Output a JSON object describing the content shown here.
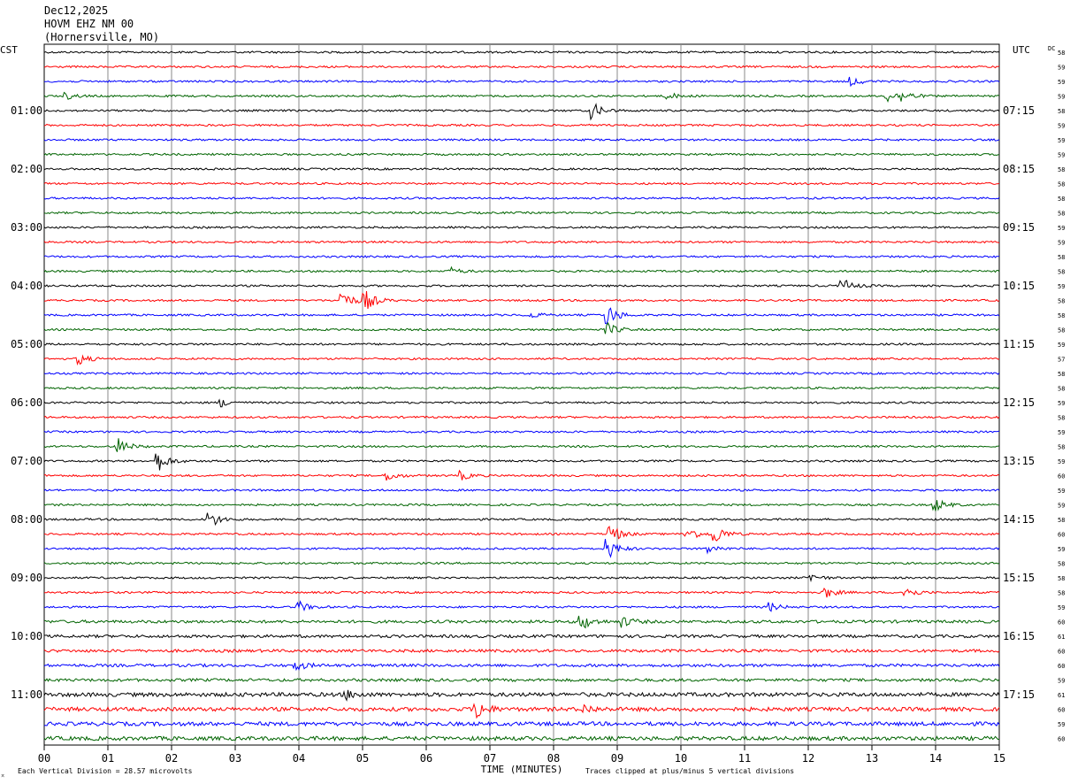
{
  "header": {
    "date": "Dec12,2025",
    "station": "HOVM EHZ NM 00",
    "location": "(Hornersville, MO)"
  },
  "left_axis_label": "CST",
  "right_axis_label": "UTC",
  "dc_label": "DC",
  "footer": {
    "scale_note": "Each Vertical Division =   28.57 microvolts",
    "clip_note": "Traces clipped at plus/minus 5 vertical divisions",
    "corner_mark": "⌅"
  },
  "chart_data": {
    "type": "line",
    "xlabel": "TIME (MINUTES)",
    "x_ticks": [
      "00",
      "01",
      "02",
      "03",
      "04",
      "05",
      "06",
      "07",
      "08",
      "09",
      "10",
      "11",
      "12",
      "13",
      "14",
      "15"
    ],
    "xlim": [
      0,
      15
    ],
    "grid_vertical": true,
    "trace_colors": [
      "#000000",
      "#ff0000",
      "#0000ff",
      "#006400"
    ],
    "trace_count": 48,
    "cst_hour_labels": [
      "01:00",
      "02:00",
      "03:00",
      "04:00",
      "05:00",
      "06:00",
      "07:00",
      "08:00",
      "09:00",
      "10:00",
      "11:00"
    ],
    "utc_hour_labels": [
      "07:15",
      "08:15",
      "09:15",
      "10:15",
      "11:15",
      "12:15",
      "13:15",
      "14:15",
      "15:15",
      "16:15",
      "17:15"
    ],
    "dc_offsets": [
      58,
      59,
      59,
      59,
      58,
      59,
      59,
      59,
      58,
      58,
      58,
      58,
      59,
      59,
      58,
      58,
      59,
      58,
      58,
      58,
      59,
      57,
      58,
      58,
      59,
      58,
      59,
      58,
      59,
      60,
      59,
      59,
      58,
      60,
      59,
      58,
      58,
      58,
      59,
      60,
      61,
      60,
      60,
      59,
      61,
      60,
      59,
      60
    ],
    "events": [
      {
        "row": 3,
        "minute": 0.35,
        "amp": 0.6
      },
      {
        "row": 3,
        "minute": 9.8,
        "amp": 0.6
      },
      {
        "row": 3,
        "minute": 13.25,
        "amp": 1.0
      },
      {
        "row": 3,
        "minute": 13.5,
        "amp": 0.9
      },
      {
        "row": 2,
        "minute": 12.7,
        "amp": 0.7
      },
      {
        "row": 4,
        "minute": 8.6,
        "amp": 1.6
      },
      {
        "row": 15,
        "minute": 6.4,
        "amp": 0.6
      },
      {
        "row": 16,
        "minute": 12.55,
        "amp": 1.2
      },
      {
        "row": 17,
        "minute": 4.7,
        "amp": 1.6
      },
      {
        "row": 17,
        "minute": 5.05,
        "amp": 1.8
      },
      {
        "row": 18,
        "minute": 7.6,
        "amp": 0.7
      },
      {
        "row": 18,
        "minute": 8.85,
        "amp": 2.0
      },
      {
        "row": 19,
        "minute": 8.85,
        "amp": 1.2
      },
      {
        "row": 21,
        "minute": 0.55,
        "amp": 1.0
      },
      {
        "row": 24,
        "minute": 2.8,
        "amp": 0.7
      },
      {
        "row": 27,
        "minute": 1.15,
        "amp": 1.6
      },
      {
        "row": 28,
        "minute": 1.8,
        "amp": 1.8
      },
      {
        "row": 29,
        "minute": 5.4,
        "amp": 0.9
      },
      {
        "row": 29,
        "minute": 6.55,
        "amp": 0.8
      },
      {
        "row": 31,
        "minute": 14.0,
        "amp": 1.2
      },
      {
        "row": 32,
        "minute": 2.6,
        "amp": 1.6
      },
      {
        "row": 33,
        "minute": 8.9,
        "amp": 1.8
      },
      {
        "row": 33,
        "minute": 10.1,
        "amp": 1.4
      },
      {
        "row": 33,
        "minute": 10.55,
        "amp": 1.6
      },
      {
        "row": 34,
        "minute": 8.85,
        "amp": 2.0
      },
      {
        "row": 34,
        "minute": 10.45,
        "amp": 0.8
      },
      {
        "row": 36,
        "minute": 12.05,
        "amp": 0.7
      },
      {
        "row": 37,
        "minute": 12.25,
        "amp": 1.2
      },
      {
        "row": 37,
        "minute": 13.55,
        "amp": 1.0
      },
      {
        "row": 38,
        "minute": 4.0,
        "amp": 1.0
      },
      {
        "row": 38,
        "minute": 11.4,
        "amp": 0.8
      },
      {
        "row": 39,
        "minute": 8.45,
        "amp": 1.4
      },
      {
        "row": 39,
        "minute": 9.1,
        "amp": 0.9
      },
      {
        "row": 42,
        "minute": 3.95,
        "amp": 0.9
      },
      {
        "row": 44,
        "minute": 4.75,
        "amp": 0.8
      },
      {
        "row": 45,
        "minute": 6.8,
        "amp": 1.8
      },
      {
        "row": 45,
        "minute": 8.5,
        "amp": 0.7
      }
    ]
  }
}
